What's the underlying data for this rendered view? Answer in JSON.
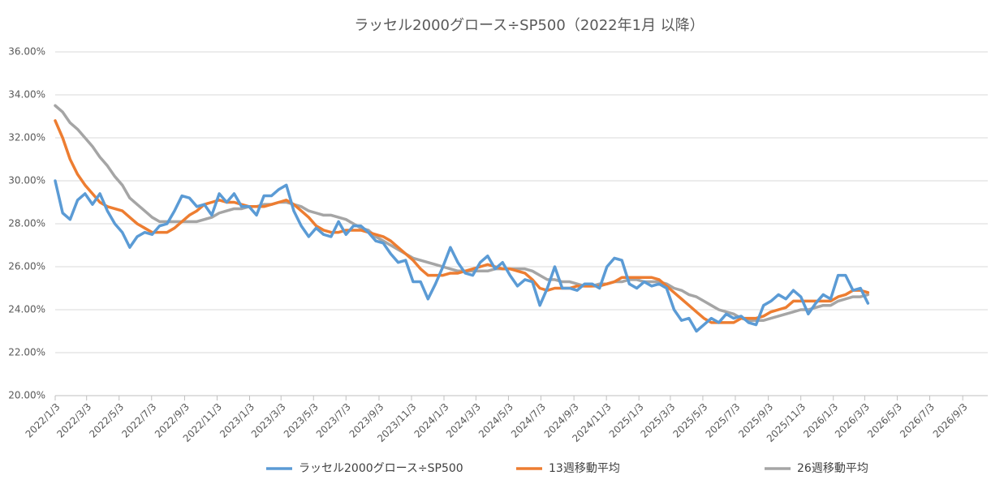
{
  "chart_data": {
    "type": "line",
    "title": "ラッセル2000グロース÷SP500（2022年1月 以降）",
    "x": [
      "2022/1/3",
      "2022/1/17",
      "2022/1/31",
      "2022/2/14",
      "2022/2/28",
      "2022/3/14",
      "2022/3/28",
      "2022/4/11",
      "2022/4/25",
      "2022/5/9",
      "2022/5/23",
      "2022/6/6",
      "2022/6/20",
      "2022/7/4",
      "2022/7/18",
      "2022/8/1",
      "2022/8/15",
      "2022/8/29",
      "2022/9/12",
      "2022/9/26",
      "2022/10/10",
      "2022/10/24",
      "2022/11/7",
      "2022/11/21",
      "2022/12/5",
      "2022/12/19",
      "2023/1/2",
      "2023/1/16",
      "2023/1/30",
      "2023/2/13",
      "2023/2/27",
      "2023/3/13",
      "2023/3/27",
      "2023/4/10",
      "2023/4/24",
      "2023/5/8",
      "2023/5/22",
      "2023/6/5",
      "2023/6/19",
      "2023/7/3",
      "2023/7/17",
      "2023/7/31",
      "2023/8/14",
      "2023/8/28",
      "2023/9/11",
      "2023/9/25",
      "2023/10/9",
      "2023/10/23",
      "2023/11/6",
      "2023/11/20",
      "2023/12/4",
      "2023/12/18",
      "2024/1/1",
      "2024/1/15",
      "2024/1/29",
      "2024/2/12",
      "2024/2/26",
      "2024/3/11",
      "2024/3/25",
      "2024/4/8",
      "2024/4/22",
      "2024/5/6",
      "2024/5/20",
      "2024/6/3",
      "2024/6/17",
      "2024/7/1",
      "2024/7/15",
      "2024/7/29",
      "2024/8/12",
      "2024/8/26",
      "2024/9/9",
      "2024/9/23",
      "2024/10/7",
      "2024/10/21",
      "2024/11/4",
      "2024/11/18",
      "2024/12/2",
      "2024/12/16",
      "2024/12/30",
      "2025/1/13",
      "2025/1/27",
      "2025/2/10",
      "2025/2/24",
      "2025/3/10",
      "2025/3/24",
      "2025/4/7",
      "2025/4/21",
      "2025/5/5",
      "2025/5/19",
      "2025/6/2",
      "2025/6/16",
      "2025/6/30",
      "2025/7/14",
      "2025/7/28",
      "2025/8/11",
      "2025/8/25",
      "2025/9/8",
      "2025/9/22",
      "2025/10/6",
      "2025/10/20",
      "2025/11/3",
      "2025/11/17",
      "2025/12/1",
      "2025/12/15",
      "2025/12/29",
      "2026/1/12",
      "2026/1/26",
      "2026/2/9",
      "2026/2/23",
      "2026/3/9"
    ],
    "series": [
      {
        "name": "ラッセル2000グロース÷SP500",
        "color": "#5b9bd5",
        "values": [
          30.0,
          28.5,
          28.2,
          29.1,
          29.4,
          28.9,
          29.4,
          28.6,
          28.0,
          27.6,
          26.9,
          27.4,
          27.6,
          27.5,
          27.9,
          28.0,
          28.6,
          29.3,
          29.2,
          28.8,
          28.9,
          28.4,
          29.4,
          29.0,
          29.4,
          28.8,
          28.8,
          28.4,
          29.3,
          29.3,
          29.6,
          29.8,
          28.6,
          27.9,
          27.4,
          27.8,
          27.5,
          27.4,
          28.1,
          27.5,
          27.9,
          27.9,
          27.6,
          27.2,
          27.1,
          26.6,
          26.2,
          26.3,
          25.3,
          25.3,
          24.5,
          25.2,
          26.0,
          26.9,
          26.2,
          25.7,
          25.6,
          26.2,
          26.5,
          25.9,
          26.2,
          25.6,
          25.1,
          25.4,
          25.3,
          24.2,
          25.0,
          26.0,
          25.0,
          25.0,
          24.9,
          25.2,
          25.2,
          25.0,
          26.0,
          26.4,
          26.3,
          25.2,
          25.0,
          25.3,
          25.1,
          25.2,
          25.0,
          24.0,
          23.5,
          23.6,
          23.0,
          23.3,
          23.6,
          23.4,
          23.8,
          23.6,
          23.7,
          23.4,
          23.3,
          24.2,
          24.4,
          24.7,
          24.5,
          24.9,
          24.6,
          23.8,
          24.3,
          24.7,
          24.5,
          25.6,
          25.6,
          24.9,
          25.0,
          24.3
        ]
      },
      {
        "name": "13週移動平均",
        "color": "#ed7d31",
        "values": [
          32.8,
          32.0,
          31.0,
          30.3,
          29.8,
          29.4,
          29.0,
          28.8,
          28.7,
          28.6,
          28.3,
          28.0,
          27.8,
          27.6,
          27.6,
          27.6,
          27.8,
          28.1,
          28.4,
          28.6,
          28.9,
          29.0,
          29.1,
          29.0,
          29.0,
          28.9,
          28.8,
          28.8,
          28.8,
          28.9,
          29.0,
          29.1,
          28.9,
          28.6,
          28.3,
          27.9,
          27.7,
          27.6,
          27.6,
          27.7,
          27.7,
          27.7,
          27.6,
          27.5,
          27.4,
          27.2,
          26.9,
          26.6,
          26.3,
          25.9,
          25.6,
          25.6,
          25.6,
          25.7,
          25.7,
          25.8,
          25.9,
          26.0,
          26.1,
          26.0,
          25.9,
          25.9,
          25.8,
          25.7,
          25.4,
          25.0,
          24.9,
          25.0,
          25.0,
          25.0,
          25.1,
          25.1,
          25.1,
          25.1,
          25.2,
          25.3,
          25.5,
          25.5,
          25.5,
          25.5,
          25.5,
          25.4,
          25.1,
          24.8,
          24.5,
          24.2,
          23.9,
          23.6,
          23.4,
          23.4,
          23.4,
          23.4,
          23.6,
          23.6,
          23.6,
          23.7,
          23.9,
          24.0,
          24.1,
          24.4,
          24.4,
          24.4,
          24.4,
          24.4,
          24.4,
          24.6,
          24.7,
          24.9,
          24.9,
          24.8
        ]
      },
      {
        "name": "26週移動平均",
        "color": "#a5a5a5",
        "values": [
          33.5,
          33.2,
          32.7,
          32.4,
          32.0,
          31.6,
          31.1,
          30.7,
          30.2,
          29.8,
          29.2,
          28.9,
          28.6,
          28.3,
          28.1,
          28.1,
          28.1,
          28.1,
          28.1,
          28.1,
          28.2,
          28.3,
          28.5,
          28.6,
          28.7,
          28.7,
          28.8,
          28.8,
          28.9,
          28.9,
          29.0,
          29.0,
          28.9,
          28.8,
          28.6,
          28.5,
          28.4,
          28.4,
          28.3,
          28.2,
          28.0,
          27.8,
          27.7,
          27.4,
          27.2,
          27.0,
          26.8,
          26.6,
          26.4,
          26.3,
          26.2,
          26.1,
          26.0,
          25.9,
          25.8,
          25.8,
          25.8,
          25.8,
          25.8,
          25.9,
          25.9,
          25.9,
          25.9,
          25.9,
          25.8,
          25.6,
          25.4,
          25.4,
          25.3,
          25.3,
          25.2,
          25.1,
          25.1,
          25.2,
          25.2,
          25.3,
          25.3,
          25.4,
          25.4,
          25.3,
          25.3,
          25.3,
          25.2,
          25.0,
          24.9,
          24.7,
          24.6,
          24.4,
          24.2,
          24.0,
          23.9,
          23.8,
          23.6,
          23.5,
          23.5,
          23.5,
          23.6,
          23.7,
          23.8,
          23.9,
          24.0,
          24.0,
          24.1,
          24.2,
          24.2,
          24.4,
          24.5,
          24.6,
          24.6,
          24.7
        ]
      }
    ],
    "xlim": [
      "2022/1/3",
      "2026/10/20"
    ],
    "xticks": [
      "2022/1/3",
      "2022/3/3",
      "2022/5/3",
      "2022/7/3",
      "2022/9/3",
      "2022/11/3",
      "2023/1/3",
      "2023/3/3",
      "2023/5/3",
      "2023/7/3",
      "2023/9/3",
      "2023/11/3",
      "2024/1/3",
      "2024/3/3",
      "2024/5/3",
      "2024/7/3",
      "2024/9/3",
      "2024/11/3",
      "2025/1/3",
      "2025/3/3",
      "2025/5/3",
      "2025/7/3",
      "2025/9/3",
      "2025/11/3",
      "2026/1/3",
      "2026/3/3",
      "2026/5/3",
      "2026/7/3",
      "2026/9/3"
    ],
    "ylim": [
      20,
      36
    ],
    "yticks": [
      {
        "value": 20,
        "label": "20.00%"
      },
      {
        "value": 22,
        "label": "22.00%"
      },
      {
        "value": 24,
        "label": "24.00%"
      },
      {
        "value": 26,
        "label": "26.00%"
      },
      {
        "value": 28,
        "label": "28.00%"
      },
      {
        "value": 30,
        "label": "30.00%"
      },
      {
        "value": 32,
        "label": "32.00%"
      },
      {
        "value": 34,
        "label": "34.00%"
      },
      {
        "value": 36,
        "label": "36.00%"
      }
    ],
    "grid": true,
    "legend": "bottom"
  }
}
